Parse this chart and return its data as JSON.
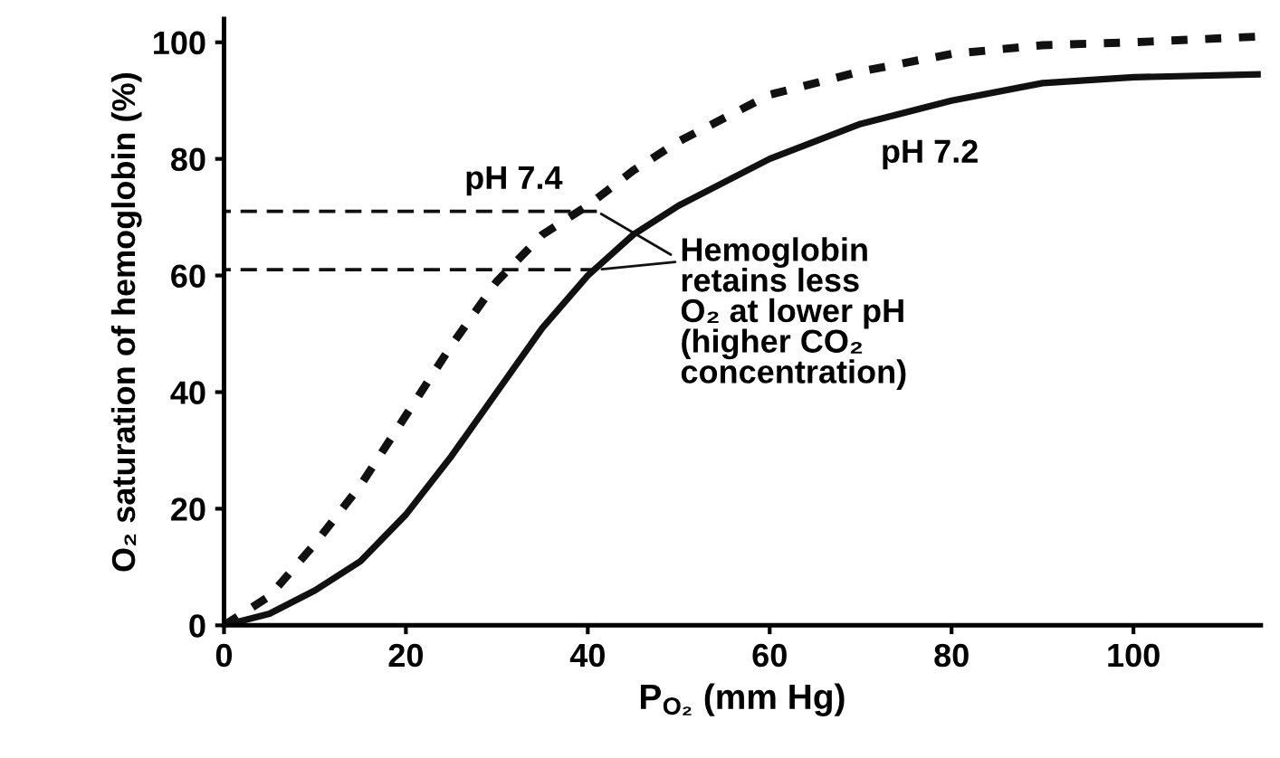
{
  "chart_data": {
    "type": "line",
    "xlabel": "P$_{O₂}$ (mm Hg)",
    "ylabel": "O₂ saturation of hemoglobin (%)",
    "xlim": [
      0,
      114
    ],
    "ylim": [
      0,
      104
    ],
    "xticks": [
      0,
      20,
      40,
      60,
      80,
      100
    ],
    "yticks": [
      0,
      20,
      40,
      60,
      80,
      100
    ],
    "grid": false,
    "legend": false,
    "series": [
      {
        "name": "pH 7.4",
        "color": "#111111",
        "line_style": "dashed",
        "x": [
          0,
          5,
          10,
          15,
          20,
          25,
          30,
          35,
          40,
          45,
          50,
          60,
          70,
          80,
          90,
          100,
          114
        ],
        "values": [
          0,
          5,
          14,
          24,
          36,
          48,
          59,
          67,
          72,
          78,
          83,
          91,
          95,
          98,
          99.5,
          100,
          101
        ]
      },
      {
        "name": "pH 7.2",
        "color": "#111111",
        "line_style": "solid",
        "x": [
          0,
          5,
          10,
          15,
          20,
          25,
          30,
          35,
          40,
          45,
          50,
          60,
          70,
          80,
          90,
          100,
          114
        ],
        "values": [
          0,
          2,
          6,
          11,
          19,
          29,
          40,
          51,
          60,
          67,
          72,
          80,
          86,
          90,
          93,
          94,
          94.5
        ]
      },
      {
        "color": "#111111",
        "line_style": "dashed",
        "x": [
          41,
          0
        ],
        "values": [
          71,
          71
        ]
      },
      {
        "color": "#111111",
        "line_style": "dashed",
        "x": [
          41,
          0
        ],
        "values": [
          61,
          61
        ]
      }
    ],
    "annotations": [
      {
        "text": "Hemoglobin\nretains less\nO₂ at lower pH\n(higher CO₂\nconcentration)",
        "x": 41,
        "y": 71
      }
    ]
  }
}
